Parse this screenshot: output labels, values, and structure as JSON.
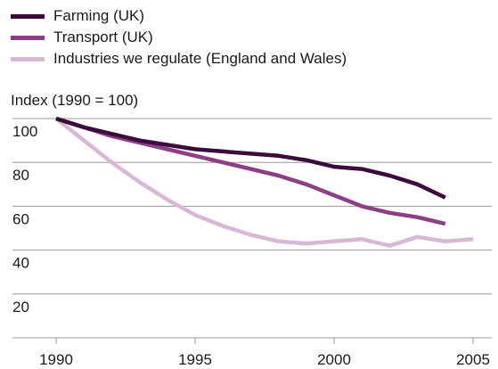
{
  "chart_data": {
    "type": "line",
    "title": "",
    "xlabel": "",
    "ylabel": "Index (1990 = 100)",
    "xlim": [
      1990,
      2005
    ],
    "ylim": [
      0,
      100
    ],
    "x_ticks": [
      "1990",
      "1995",
      "2000",
      "2005"
    ],
    "y_ticks": [
      "100",
      "80",
      "60",
      "40",
      "20"
    ],
    "grid": "horizontal",
    "legend_position": "top-left",
    "series": [
      {
        "name": "Farming (UK)",
        "color": "#3b0a3b",
        "x": [
          1990,
          1991,
          1992,
          1993,
          1994,
          1995,
          1996,
          1997,
          1998,
          1999,
          2000,
          2001,
          2002,
          2003,
          2004
        ],
        "values": [
          100,
          96,
          93,
          90,
          88,
          86,
          85,
          84,
          83,
          81,
          78,
          77,
          74,
          70,
          64
        ]
      },
      {
        "name": "Transport (UK)",
        "color": "#8c3f85",
        "x": [
          1990,
          1991,
          1992,
          1993,
          1994,
          1995,
          1996,
          1997,
          1998,
          1999,
          2000,
          2001,
          2002,
          2003,
          2004
        ],
        "values": [
          100,
          96,
          92,
          89,
          86,
          83,
          80,
          77,
          74,
          70,
          65,
          60,
          57,
          55,
          52
        ]
      },
      {
        "name": "Industries we regulate (England and Wales)",
        "color": "#d8b8d6",
        "x": [
          1990,
          1991,
          1992,
          1993,
          1994,
          1995,
          1996,
          1997,
          1998,
          1999,
          2000,
          2001,
          2002,
          2003,
          2004,
          2005
        ],
        "values": [
          100,
          90,
          80,
          71,
          63,
          56,
          51,
          47,
          44,
          43,
          44,
          45,
          42,
          46,
          44,
          45
        ]
      }
    ]
  }
}
